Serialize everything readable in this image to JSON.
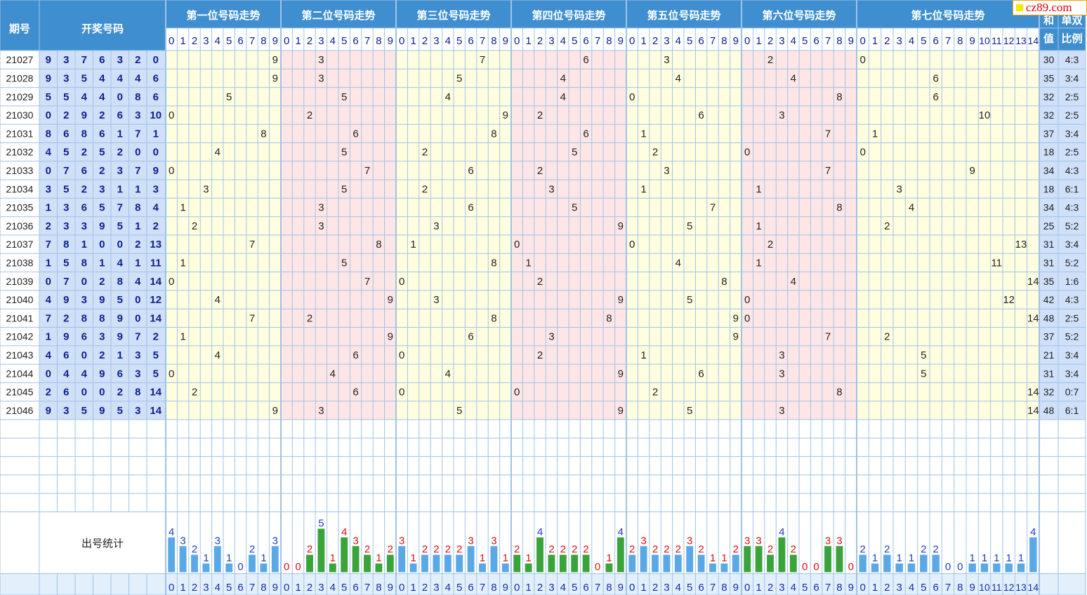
{
  "badge": {
    "text": "cz89.com"
  },
  "header": {
    "period": "期号",
    "draw": "开奖号码",
    "sum": [
      "和",
      "值"
    ],
    "ratio": [
      "单双",
      "比例"
    ],
    "stat": "出号统计"
  },
  "chart_data": {
    "type": "table",
    "positions": [
      {
        "title": "第一位号码走势",
        "digits": [
          0,
          1,
          2,
          3,
          4,
          5,
          6,
          7,
          8,
          9
        ],
        "counts": [
          4,
          3,
          2,
          1,
          3,
          1,
          0,
          2,
          1,
          3
        ]
      },
      {
        "title": "第二位号码走势",
        "digits": [
          0,
          1,
          2,
          3,
          4,
          5,
          6,
          7,
          8,
          9
        ],
        "counts": [
          0,
          0,
          2,
          5,
          1,
          4,
          3,
          2,
          1,
          2
        ]
      },
      {
        "title": "第三位号码走势",
        "digits": [
          0,
          1,
          2,
          3,
          4,
          5,
          6,
          7,
          8,
          9
        ],
        "counts": [
          3,
          1,
          2,
          2,
          2,
          2,
          3,
          1,
          3,
          1
        ]
      },
      {
        "title": "第四位号码走势",
        "digits": [
          0,
          1,
          2,
          3,
          4,
          5,
          6,
          7,
          8,
          9
        ],
        "counts": [
          2,
          1,
          4,
          2,
          2,
          2,
          2,
          0,
          1,
          4
        ]
      },
      {
        "title": "第五位号码走势",
        "digits": [
          0,
          1,
          2,
          3,
          4,
          5,
          6,
          7,
          8,
          9
        ],
        "counts": [
          2,
          3,
          2,
          2,
          2,
          3,
          2,
          1,
          1,
          2
        ]
      },
      {
        "title": "第六位号码走势",
        "digits": [
          0,
          1,
          2,
          3,
          4,
          5,
          6,
          7,
          8,
          9
        ],
        "counts": [
          3,
          3,
          2,
          4,
          2,
          0,
          0,
          3,
          3,
          0
        ]
      },
      {
        "title": "第七位号码走势",
        "digits": [
          0,
          1,
          2,
          3,
          4,
          5,
          6,
          7,
          8,
          9,
          10,
          11,
          12,
          13,
          14
        ],
        "counts": [
          2,
          1,
          2,
          1,
          1,
          2,
          2,
          0,
          0,
          1,
          1,
          1,
          1,
          1,
          4
        ]
      }
    ],
    "rows": [
      {
        "period": "21027",
        "nums": [
          9,
          3,
          7,
          6,
          3,
          2,
          0
        ],
        "sum": 30,
        "ratio": "4:3"
      },
      {
        "period": "21028",
        "nums": [
          9,
          3,
          5,
          4,
          4,
          4,
          6
        ],
        "sum": 35,
        "ratio": "3:4"
      },
      {
        "period": "21029",
        "nums": [
          5,
          5,
          4,
          4,
          0,
          8,
          6
        ],
        "sum": 32,
        "ratio": "2:5"
      },
      {
        "period": "21030",
        "nums": [
          0,
          2,
          9,
          2,
          6,
          3,
          10
        ],
        "sum": 32,
        "ratio": "2:5"
      },
      {
        "period": "21031",
        "nums": [
          8,
          6,
          8,
          6,
          1,
          7,
          1
        ],
        "sum": 37,
        "ratio": "3:4"
      },
      {
        "period": "21032",
        "nums": [
          4,
          5,
          2,
          5,
          2,
          0,
          0
        ],
        "sum": 18,
        "ratio": "2:5"
      },
      {
        "period": "21033",
        "nums": [
          0,
          7,
          6,
          2,
          3,
          7,
          9
        ],
        "sum": 34,
        "ratio": "4:3"
      },
      {
        "period": "21034",
        "nums": [
          3,
          5,
          2,
          3,
          1,
          1,
          3
        ],
        "sum": 18,
        "ratio": "6:1"
      },
      {
        "period": "21035",
        "nums": [
          1,
          3,
          6,
          5,
          7,
          8,
          4
        ],
        "sum": 34,
        "ratio": "4:3"
      },
      {
        "period": "21036",
        "nums": [
          2,
          3,
          3,
          9,
          5,
          1,
          2
        ],
        "sum": 25,
        "ratio": "5:2"
      },
      {
        "period": "21037",
        "nums": [
          7,
          8,
          1,
          0,
          0,
          2,
          13
        ],
        "sum": 31,
        "ratio": "3:4"
      },
      {
        "period": "21038",
        "nums": [
          1,
          5,
          8,
          1,
          4,
          1,
          11
        ],
        "sum": 31,
        "ratio": "5:2"
      },
      {
        "period": "21039",
        "nums": [
          0,
          7,
          0,
          2,
          8,
          4,
          14
        ],
        "sum": 35,
        "ratio": "1:6"
      },
      {
        "period": "21040",
        "nums": [
          4,
          9,
          3,
          9,
          5,
          0,
          12
        ],
        "sum": 42,
        "ratio": "4:3"
      },
      {
        "period": "21041",
        "nums": [
          7,
          2,
          8,
          8,
          9,
          0,
          14
        ],
        "sum": 48,
        "ratio": "2:5"
      },
      {
        "period": "21042",
        "nums": [
          1,
          9,
          6,
          3,
          9,
          7,
          2
        ],
        "sum": 37,
        "ratio": "5:2"
      },
      {
        "period": "21043",
        "nums": [
          4,
          6,
          0,
          2,
          1,
          3,
          5
        ],
        "sum": 21,
        "ratio": "3:4"
      },
      {
        "period": "21044",
        "nums": [
          0,
          4,
          4,
          9,
          6,
          3,
          5
        ],
        "sum": 31,
        "ratio": "3:4"
      },
      {
        "period": "21045",
        "nums": [
          2,
          6,
          0,
          0,
          2,
          8,
          14
        ],
        "sum": 32,
        "ratio": "0:7"
      },
      {
        "period": "21046",
        "nums": [
          9,
          3,
          5,
          9,
          5,
          3,
          14
        ],
        "sum": 48,
        "ratio": "6:1"
      }
    ],
    "colors": {
      "header_bg": "#3f8fd0",
      "header_text": "#ffffff",
      "subheader_bg": "#ffffff",
      "period_bg": "#ffffff",
      "draw_bg": "#cfe0f8",
      "draw_text": "#0d1f8c",
      "yellow_zone": "#ffffe0",
      "pink_zone": "#ffe6e6",
      "grid_line": "#9fc3e6",
      "bar_blue": "#5aa9e6",
      "bar_green": "#3aa33a",
      "count_blue": "#2040c0",
      "count_red": "#e01010",
      "footer_bg": "#e3effb",
      "footer_text": "#1030b0"
    }
  }
}
